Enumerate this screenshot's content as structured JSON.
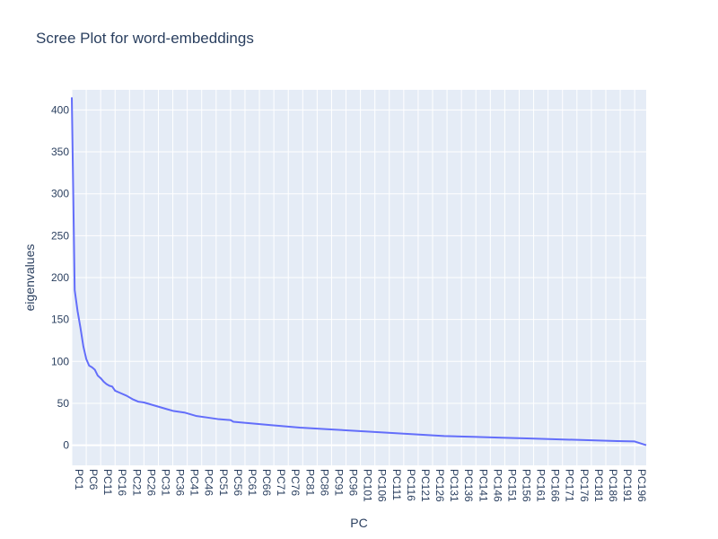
{
  "chart_data": {
    "type": "line",
    "title": "Scree Plot for word-embeddings",
    "xlabel": "PC",
    "ylabel": "eigenvalues",
    "ylim": [
      -24,
      424
    ],
    "y_ticks": [
      0,
      50,
      100,
      150,
      200,
      250,
      300,
      350,
      400
    ],
    "x_count": 200,
    "x_tick_every": 5,
    "x_prefix": "PC",
    "grid": true,
    "legend": "none",
    "colors": {
      "line": "#636efa",
      "plot_bg": "#e5ecf6",
      "grid": "#ffffff",
      "text": "#2a3f5f"
    },
    "anchors": [
      [
        1,
        415
      ],
      [
        2,
        185
      ],
      [
        3,
        160
      ],
      [
        4,
        140
      ],
      [
        5,
        118
      ],
      [
        6,
        103
      ],
      [
        7,
        95
      ],
      [
        8,
        93
      ],
      [
        9,
        90
      ],
      [
        10,
        83
      ],
      [
        11,
        80
      ],
      [
        12,
        76
      ],
      [
        13,
        73
      ],
      [
        14,
        71
      ],
      [
        15,
        70
      ],
      [
        16,
        65
      ],
      [
        18,
        62
      ],
      [
        20,
        59
      ],
      [
        22,
        55
      ],
      [
        24,
        52
      ],
      [
        26,
        51
      ],
      [
        30,
        47
      ],
      [
        34,
        43
      ],
      [
        36,
        41
      ],
      [
        40,
        39
      ],
      [
        44,
        35
      ],
      [
        48,
        33
      ],
      [
        52,
        31
      ],
      [
        56,
        30
      ],
      [
        57,
        28
      ],
      [
        60,
        27
      ],
      [
        70,
        24
      ],
      [
        80,
        21
      ],
      [
        90,
        19
      ],
      [
        100,
        17
      ],
      [
        110,
        15
      ],
      [
        120,
        13
      ],
      [
        130,
        11
      ],
      [
        140,
        10
      ],
      [
        150,
        9
      ],
      [
        160,
        8
      ],
      [
        170,
        7
      ],
      [
        180,
        6
      ],
      [
        190,
        5
      ],
      [
        196,
        4.5
      ],
      [
        200,
        0
      ]
    ]
  }
}
